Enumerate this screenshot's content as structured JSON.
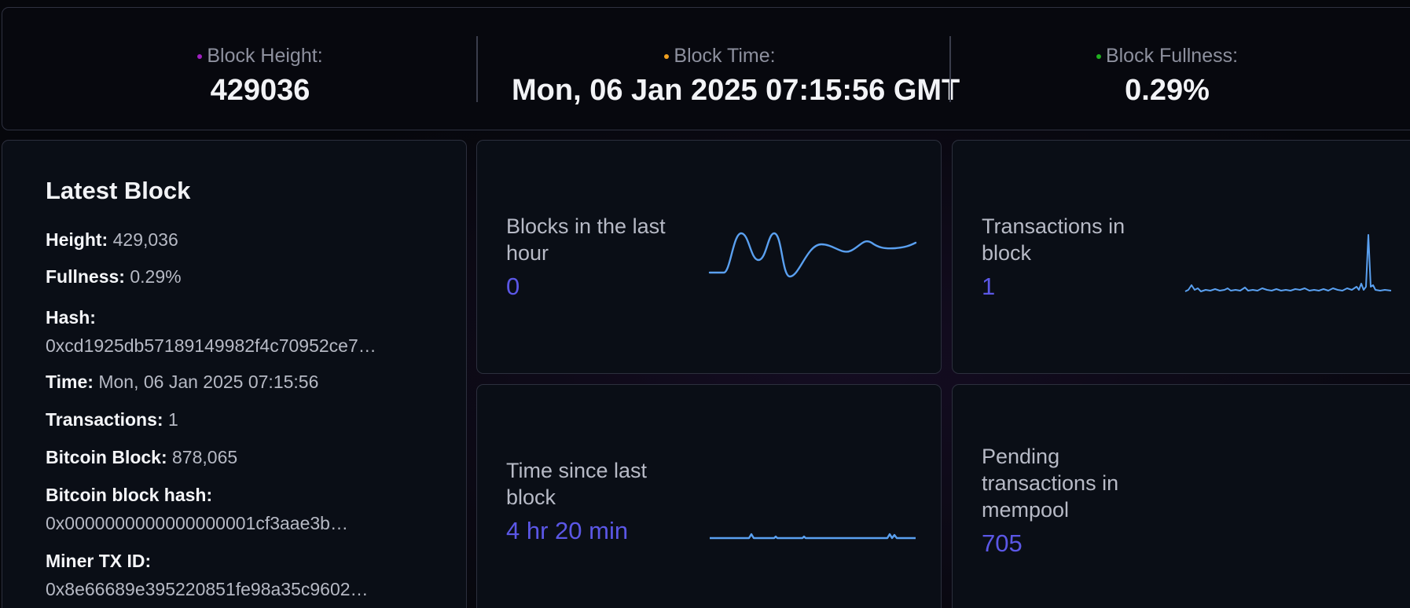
{
  "stats": {
    "block_height_label": "Block Height:",
    "block_height_value": "429036",
    "block_time_label": "Block Time:",
    "block_time_value": "Mon, 06 Jan 2025 07:15:56 GMT",
    "block_fullness_label": "Block Fullness:",
    "block_fullness_value": "0.29%",
    "colors": {
      "height_dot": "#a020c0",
      "time_dot": "#f0a020",
      "fullness_dot": "#20b020"
    }
  },
  "latest_block": {
    "title": "Latest Block",
    "height_key": "Height:",
    "height_val": "429,036",
    "fullness_key": "Fullness:",
    "fullness_val": "0.29%",
    "hash_key": "Hash:",
    "hash_val": "0xcd1925db57189149982f4c70952ce7…",
    "time_key": "Time:",
    "time_val": "Mon, 06 Jan 2025 07:15:56",
    "transactions_key": "Transactions:",
    "transactions_val": "1",
    "bitcoin_block_key": "Bitcoin Block:",
    "bitcoin_block_val": "878,065",
    "bitcoin_hash_key": "Bitcoin block hash:",
    "bitcoin_hash_val": "0x0000000000000000001cf3aae3b…",
    "miner_tx_key": "Miner TX ID:",
    "miner_tx_val": "0x8e66689e395220851fe98a35c9602…"
  },
  "metrics": {
    "blocks_last_hour": {
      "title_line1": "Blocks in the last",
      "title_line2": "hour",
      "value": "0"
    },
    "transactions_in_block": {
      "title_line1": "Transactions in",
      "title_line2": "block",
      "value": "1"
    },
    "time_since_last_block": {
      "title_line1": "Time since last",
      "title_line2": "block",
      "value": "4 hr 20 min"
    },
    "pending_transactions": {
      "title_line1": "Pending",
      "title_line2": "transactions in",
      "title_line3": "mempool",
      "value": "705"
    },
    "accent_color": "#5b57e6",
    "sparkline_color": "#5aa0f0"
  }
}
